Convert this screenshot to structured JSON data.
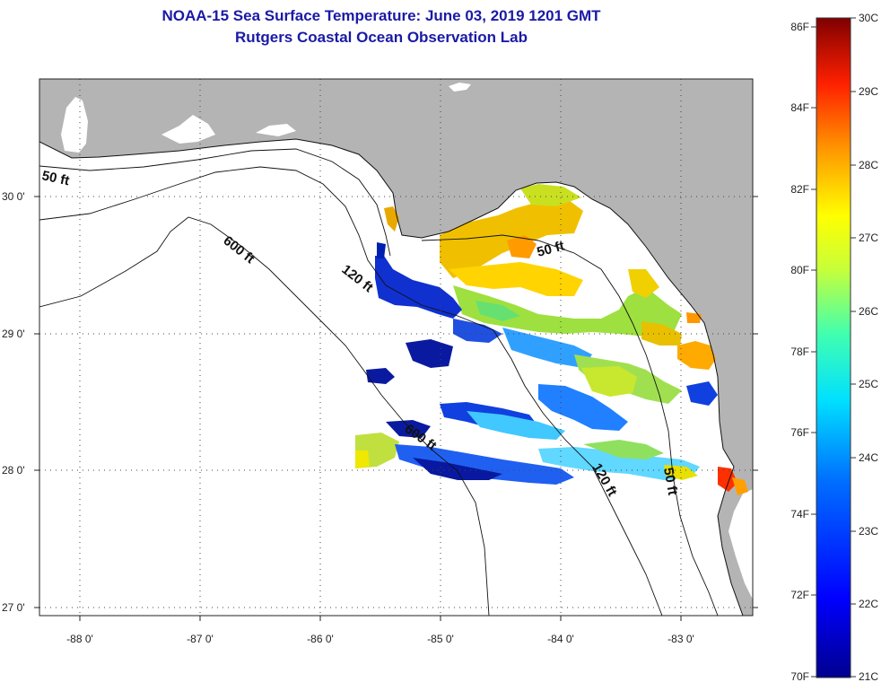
{
  "title": {
    "line1": "NOAA-15 Sea Surface Temperature:  June 03, 2019 1201 GMT",
    "line2": "Rutgers Coastal Ocean Observation Lab"
  },
  "map": {
    "lat_labels": [
      "30 0'",
      "29 0'",
      "28 0'",
      "27 0'"
    ],
    "lon_labels": [
      "-88 0'",
      "-87 0'",
      "-86 0'",
      "-85 0'",
      "-84 0'",
      "-83 0'"
    ],
    "contour_labels": [
      "50 ft",
      "600 ft",
      "120 ft",
      "50 ft",
      "600 ft",
      "120 ft",
      "50 ft"
    ],
    "land_color": "#b4b4b4",
    "ocean_color": "#ffffff"
  },
  "colorbar": {
    "fahrenheit_labels": [
      "86F",
      "84F",
      "82F",
      "80F",
      "78F",
      "76F",
      "74F",
      "72F",
      "70F"
    ],
    "celsius_labels": [
      "30C",
      "29C",
      "28C",
      "27C",
      "26C",
      "25C",
      "24C",
      "23C",
      "22C",
      "21C"
    ]
  }
}
